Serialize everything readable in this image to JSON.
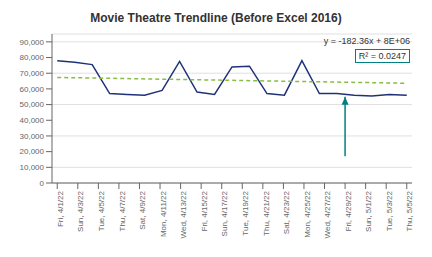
{
  "chart_data": {
    "type": "line",
    "title": "Movie Theatre Trendline (Before Excel 2016)",
    "x": [
      0,
      1,
      2,
      3,
      4,
      5,
      6,
      7,
      8,
      9,
      10,
      11,
      12,
      13,
      14,
      15,
      16,
      17,
      18,
      19,
      20
    ],
    "series": [
      {
        "values": [
          78000,
          77000,
          75500,
          57000,
          56500,
          56000,
          59000,
          77500,
          58000,
          56500,
          74000,
          74500,
          57000,
          56000,
          78000,
          57000,
          57000,
          56000,
          55500,
          56500,
          56000
        ],
        "color": "#1f3278",
        "marker": "none",
        "line_style": "solid"
      },
      {
        "x": [
          0,
          20
        ],
        "values": [
          67300,
          63600
        ],
        "color": "#8abd45",
        "marker": "none",
        "line_style": "dashed"
      }
    ],
    "xlim": [
      -0.3,
      20.3
    ],
    "xticks": [
      {
        "value": 0,
        "label": "Fri, 4/1/22"
      },
      {
        "value": 1.1764705882352942,
        "label": "Sun, 4/3/22"
      },
      {
        "value": 2.3529411764705883,
        "label": "Tue, 4/5/22"
      },
      {
        "value": 3.5294117647058822,
        "label": "Thu, 4/7/22"
      },
      {
        "value": 4.705882352941177,
        "label": "Sat, 4/9/22"
      },
      {
        "value": 5.882352941176471,
        "label": "Mon, 4/11/22"
      },
      {
        "value": 7.0588235294117645,
        "label": "Wed, 4/13/22"
      },
      {
        "value": 8.235294117647058,
        "label": "Fri, 4/15/22"
      },
      {
        "value": 9.411764705882353,
        "label": "Sun, 4/17/22"
      },
      {
        "value": 10.588235294117647,
        "label": "Tue, 4/19/22"
      },
      {
        "value": 11.764705882352942,
        "label": "Thu, 4/21/22"
      },
      {
        "value": 12.941176470588236,
        "label": "Sat, 4/23/22"
      },
      {
        "value": 14.117647058823529,
        "label": "Mon, 4/25/22"
      },
      {
        "value": 15.294117647058824,
        "label": "Wed, 4/27/22"
      },
      {
        "value": 16.470588235294116,
        "label": "Fri, 4/29/22"
      },
      {
        "value": 17.647058823529413,
        "label": "Sun, 5/1/22"
      },
      {
        "value": 18.823529411764707,
        "label": "Tue, 5/3/22"
      },
      {
        "value": 20,
        "label": "Thu, 5/5/22"
      }
    ],
    "ylim": [
      0,
      95000
    ],
    "yticks": [
      0,
      {
        "value": 10000,
        "label": "10,000"
      },
      {
        "value": 20000,
        "label": "20,000"
      },
      {
        "value": 30000,
        "label": "30,000"
      },
      {
        "value": 40000,
        "label": "40,000"
      },
      {
        "value": 50000,
        "label": "50,000"
      },
      {
        "value": 60000,
        "label": "60,000"
      },
      {
        "value": 70000,
        "label": "70,000"
      },
      {
        "value": 80000,
        "label": "80,000"
      },
      {
        "value": 90000,
        "label": "90,000"
      }
    ],
    "grid": true,
    "annotations": [
      {
        "text": "y = -182.36x + 8E+06"
      },
      {
        "text": "R² = 0.0247",
        "color": "#008080"
      },
      {
        "type": "arrow",
        "x": 16.470588235294116,
        "y": [
          17000,
          55000
        ],
        "color": "#008080"
      }
    ]
  }
}
